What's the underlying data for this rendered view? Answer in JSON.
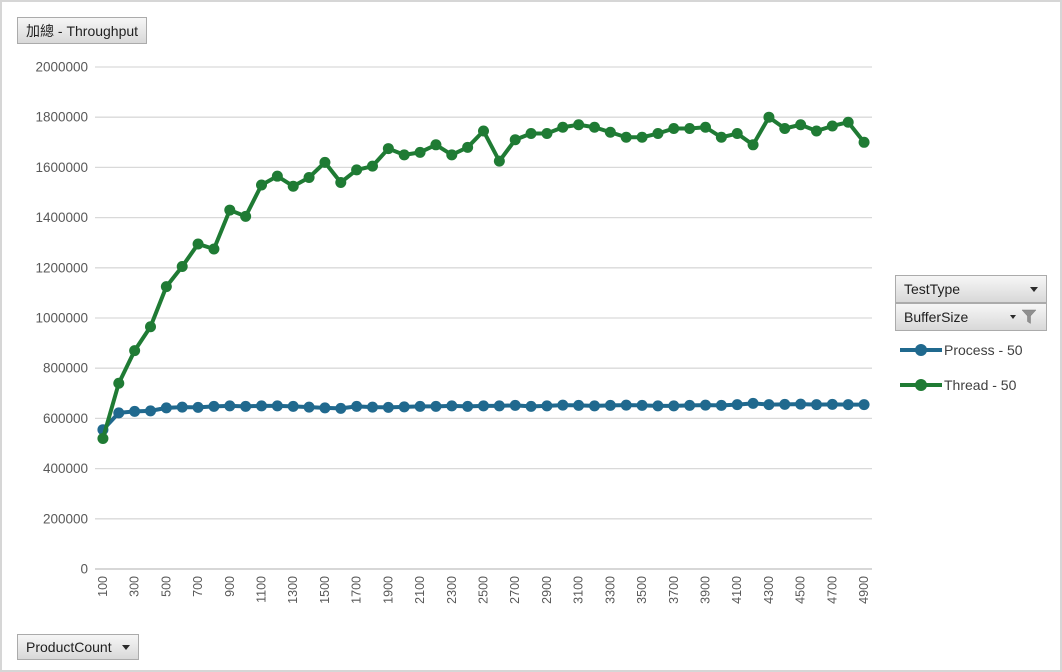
{
  "title_field": "加總 - Throughput",
  "axis_field": {
    "label": "ProductCount"
  },
  "legend_fields": {
    "testtype": {
      "label": "TestType",
      "filtered": false
    },
    "buffersize": {
      "label": "BufferSize",
      "filtered": true
    }
  },
  "legend": [
    {
      "label": "Process - 50",
      "color": "#20698E"
    },
    {
      "label": "Thread - 50",
      "color": "#1F7B34"
    }
  ],
  "colors": {
    "gridline": "#D9D9D9",
    "axis_line": "#BFBFBF",
    "axis_text": "#595959",
    "process_series": "#20698E",
    "thread_series": "#1F7B34"
  },
  "chart_data": {
    "type": "line",
    "title": "加總 - Throughput",
    "xlabel": "ProductCount",
    "ylabel": "",
    "ylim": [
      0,
      2000000
    ],
    "ytick_step": 200000,
    "grid": true,
    "legend_position": "right",
    "x_label_every": 2,
    "x": [
      100,
      200,
      300,
      400,
      500,
      600,
      700,
      800,
      900,
      1000,
      1100,
      1200,
      1300,
      1400,
      1500,
      1600,
      1700,
      1800,
      1900,
      2000,
      2100,
      2200,
      2300,
      2400,
      2500,
      2600,
      2700,
      2800,
      2900,
      3000,
      3100,
      3200,
      3300,
      3400,
      3500,
      3600,
      3700,
      3800,
      3900,
      4000,
      4100,
      4200,
      4300,
      4400,
      4500,
      4600,
      4700,
      4800,
      4900
    ],
    "series": [
      {
        "name": "Process - 50",
        "color": "#20698E",
        "values": [
          555000,
          622000,
          628000,
          630000,
          642000,
          645000,
          644000,
          648000,
          650000,
          648000,
          650000,
          650000,
          648000,
          645000,
          642000,
          640000,
          648000,
          645000,
          644000,
          646000,
          648000,
          648000,
          650000,
          648000,
          650000,
          650000,
          652000,
          648000,
          650000,
          653000,
          652000,
          650000,
          652000,
          653000,
          652000,
          650000,
          650000,
          652000,
          653000,
          652000,
          655000,
          660000,
          655000,
          656000,
          657000,
          655000,
          656000,
          655000,
          655000
        ]
      },
      {
        "name": "Thread - 50",
        "color": "#1F7B34",
        "values": [
          520000,
          740000,
          870000,
          965000,
          1125000,
          1205000,
          1295000,
          1275000,
          1430000,
          1405000,
          1530000,
          1565000,
          1525000,
          1560000,
          1620000,
          1540000,
          1590000,
          1605000,
          1675000,
          1650000,
          1660000,
          1690000,
          1650000,
          1680000,
          1745000,
          1625000,
          1710000,
          1735000,
          1735000,
          1760000,
          1770000,
          1760000,
          1740000,
          1720000,
          1720000,
          1735000,
          1755000,
          1755000,
          1760000,
          1720000,
          1735000,
          1690000,
          1800000,
          1755000,
          1770000,
          1745000,
          1765000,
          1780000,
          1700000
        ]
      }
    ]
  }
}
